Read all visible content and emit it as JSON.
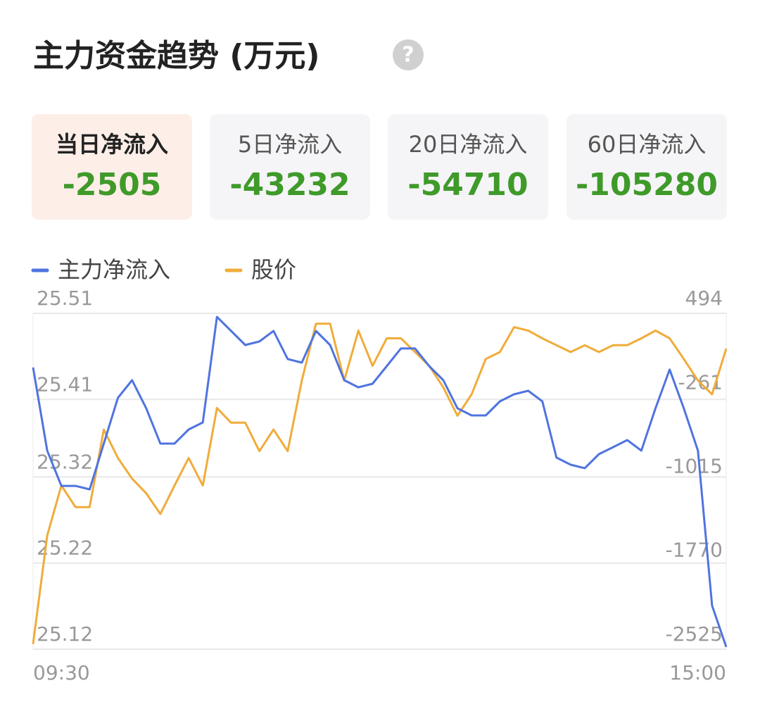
{
  "header": {
    "title": "主力资金趋势 (万元)",
    "help_icon": "?"
  },
  "tabs": [
    {
      "label": "当日净流入",
      "value": -2505
    },
    {
      "label": "5日净流入",
      "value": -43232
    },
    {
      "label": "20日净流入",
      "value": -54710
    },
    {
      "label": "60日净流入",
      "value": -105280
    }
  ],
  "chart_data": {
    "type": "line",
    "categories": [
      "09:30",
      null,
      null,
      null,
      null,
      null,
      null,
      null,
      null,
      null,
      null,
      null,
      null,
      null,
      null,
      null,
      null,
      null,
      null,
      null,
      null,
      null,
      null,
      null,
      null,
      null,
      null,
      null,
      null,
      null,
      null,
      null,
      null,
      null,
      null,
      null,
      null,
      null,
      null,
      null,
      null,
      null,
      null,
      null,
      null,
      null,
      null,
      null,
      null,
      "15:00"
    ],
    "series": [
      {
        "name": "主力净流入",
        "color": "#4f74e0",
        "axis": "y2",
        "values": [
          7,
          -740,
          -1057,
          -1057,
          -1088,
          -677,
          -265,
          -107,
          -360,
          -677,
          -677,
          -550,
          -487,
          462,
          336,
          209,
          241,
          336,
          83,
          51,
          336,
          209,
          -107,
          -171,
          -139,
          19,
          178,
          178,
          19,
          -107,
          -360,
          -424,
          -424,
          -297,
          -234,
          -202,
          -297,
          -803,
          -867,
          -898,
          -772,
          -709,
          -645,
          -740,
          -360,
          -12,
          -360,
          -740,
          -2133,
          -2505
        ]
      },
      {
        "name": "股价",
        "color": "#f0ac3a",
        "values": [
          25.126,
          25.252,
          25.31,
          25.285,
          25.285,
          25.375,
          25.342,
          25.318,
          25.301,
          25.277,
          25.31,
          25.342,
          25.31,
          25.4,
          25.383,
          25.383,
          25.35,
          25.375,
          25.35,
          25.432,
          25.498,
          25.498,
          25.432,
          25.49,
          25.449,
          25.481,
          25.481,
          25.465,
          25.449,
          25.424,
          25.391,
          25.416,
          25.457,
          25.465,
          25.494,
          25.49,
          25.481,
          25.473,
          25.465,
          25.473,
          25.465,
          25.473,
          25.473,
          25.481,
          25.49,
          25.481,
          25.457,
          25.432,
          25.416,
          25.469
        ]
      }
    ],
    "ylim": [
      25.12,
      25.51
    ],
    "yticks": [
      25.51,
      25.41,
      25.32,
      25.22,
      25.12
    ],
    "y2lim": [
      -2525,
      494
    ],
    "y2ticks": [
      494,
      -261,
      -1015,
      -1770,
      -2525
    ],
    "grid": true
  }
}
